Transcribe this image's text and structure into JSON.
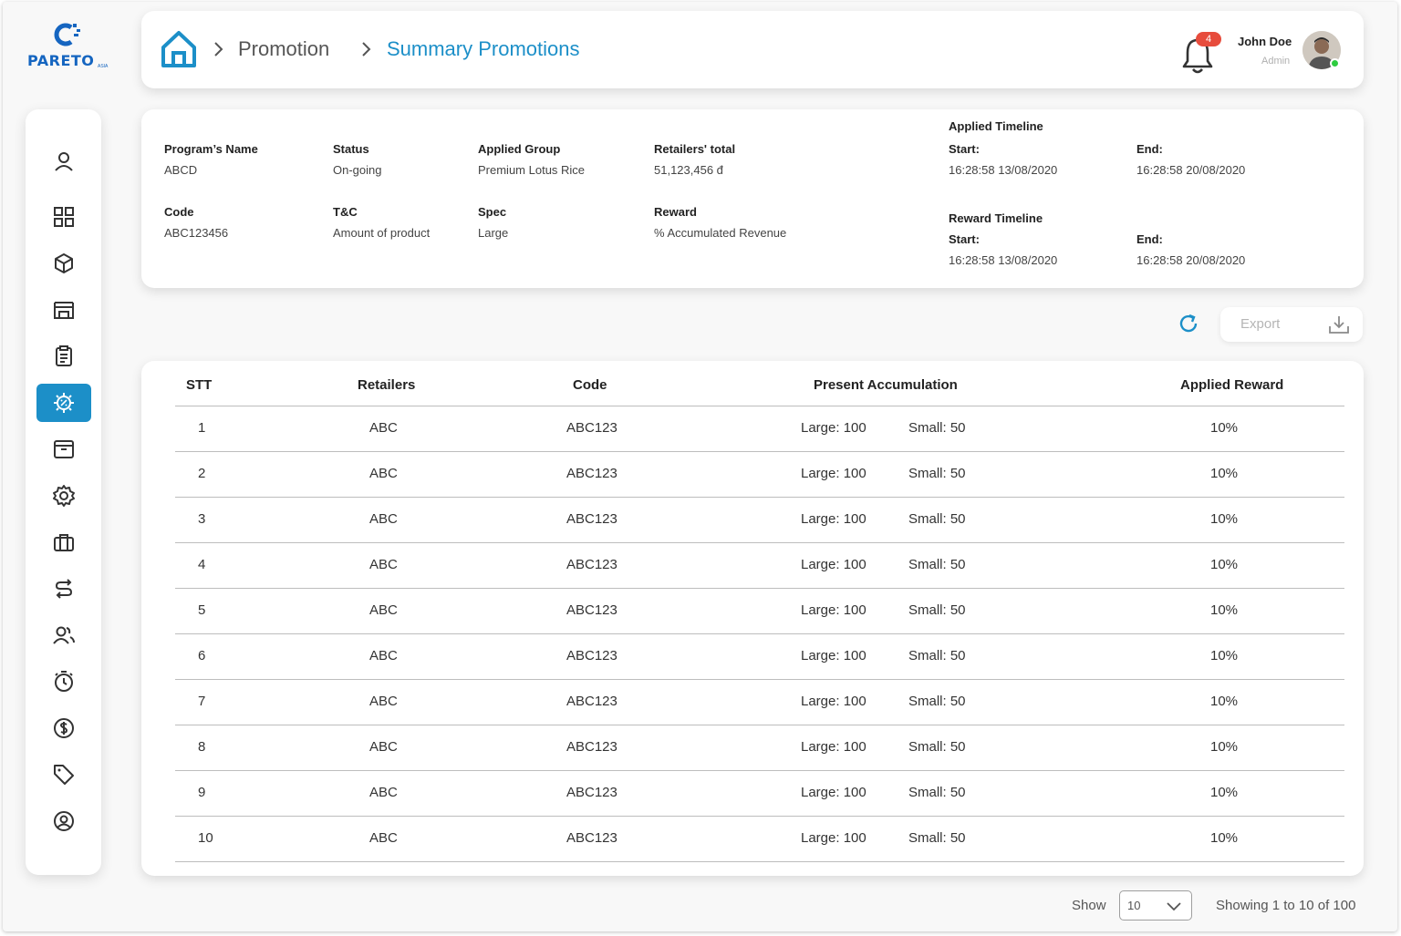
{
  "brand": {
    "name": "PARETO",
    "suffix": "ASIA",
    "color": "#1565c0"
  },
  "breadcrumb": {
    "home_icon": "home-icon",
    "items": [
      "Promotion",
      "Summary Promotions"
    ]
  },
  "notifications": {
    "count": "4"
  },
  "user": {
    "name": "John Doe",
    "role": "Admin",
    "online": true
  },
  "sidebar": {
    "active_index": 5,
    "items": [
      "user-icon",
      "dashboard-icon",
      "box-icon",
      "store-icon",
      "clipboard-icon",
      "promotion-gear-icon",
      "archive-icon",
      "settings-icon",
      "briefcase-icon",
      "route-icon",
      "users-icon",
      "timer-icon",
      "dollar-icon",
      "tag-icon",
      "account-circle-icon"
    ]
  },
  "program": {
    "name_label": "Program’s Name",
    "name": "ABCD",
    "status_label": "Status",
    "status": "On-going",
    "group_label": "Applied Group",
    "group": "Premium Lotus Rice",
    "retailers_label": "Retailers' total",
    "retailers": "51,123,456 đ",
    "code_label": "Code",
    "code": "ABC123456",
    "tc_label": "T&C",
    "tc": "Amount of product",
    "spec_label": "Spec",
    "spec": "Large",
    "reward_label": "Reward",
    "reward": "% Accumulated Revenue",
    "applied_timeline": {
      "title": "Applied Timeline",
      "start_label": "Start:",
      "start": "16:28:58  13/08/2020",
      "end_label": "End:",
      "end": "16:28:58  20/08/2020"
    },
    "reward_timeline": {
      "title": "Reward Timeline",
      "start_label": "Start:",
      "start": "16:28:58  13/08/2020",
      "end_label": "End:",
      "end": "16:28:58  20/08/2020"
    }
  },
  "toolbar": {
    "export_label": "Export"
  },
  "table": {
    "columns": [
      "STT",
      "Retailers",
      "Code",
      "Present Accumulation",
      "Applied Reward"
    ],
    "rows": [
      {
        "stt": "1",
        "retailer": "ABC",
        "code": "ABC123",
        "large": "Large: 100",
        "small": "Small: 50",
        "reward": "10%"
      },
      {
        "stt": "2",
        "retailer": "ABC",
        "code": "ABC123",
        "large": "Large: 100",
        "small": "Small: 50",
        "reward": "10%"
      },
      {
        "stt": "3",
        "retailer": "ABC",
        "code": "ABC123",
        "large": "Large: 100",
        "small": "Small: 50",
        "reward": "10%"
      },
      {
        "stt": "4",
        "retailer": "ABC",
        "code": "ABC123",
        "large": "Large: 100",
        "small": "Small: 50",
        "reward": "10%"
      },
      {
        "stt": "5",
        "retailer": "ABC",
        "code": "ABC123",
        "large": "Large: 100",
        "small": "Small: 50",
        "reward": "10%"
      },
      {
        "stt": "6",
        "retailer": "ABC",
        "code": "ABC123",
        "large": "Large: 100",
        "small": "Small: 50",
        "reward": "10%"
      },
      {
        "stt": "7",
        "retailer": "ABC",
        "code": "ABC123",
        "large": "Large: 100",
        "small": "Small: 50",
        "reward": "10%"
      },
      {
        "stt": "8",
        "retailer": "ABC",
        "code": "ABC123",
        "large": "Large: 100",
        "small": "Small: 50",
        "reward": "10%"
      },
      {
        "stt": "9",
        "retailer": "ABC",
        "code": "ABC123",
        "large": "Large: 100",
        "small": "Small: 50",
        "reward": "10%"
      },
      {
        "stt": "10",
        "retailer": "ABC",
        "code": "ABC123",
        "large": "Large: 100",
        "small": "Small: 50",
        "reward": "10%"
      }
    ]
  },
  "pagination": {
    "show_label": "Show",
    "page_size": "10",
    "summary": "Showing 1 to 10 of 100"
  },
  "colors": {
    "accent": "#1c8fc8",
    "badge": "#e74c3c",
    "online": "#2ecc40"
  }
}
